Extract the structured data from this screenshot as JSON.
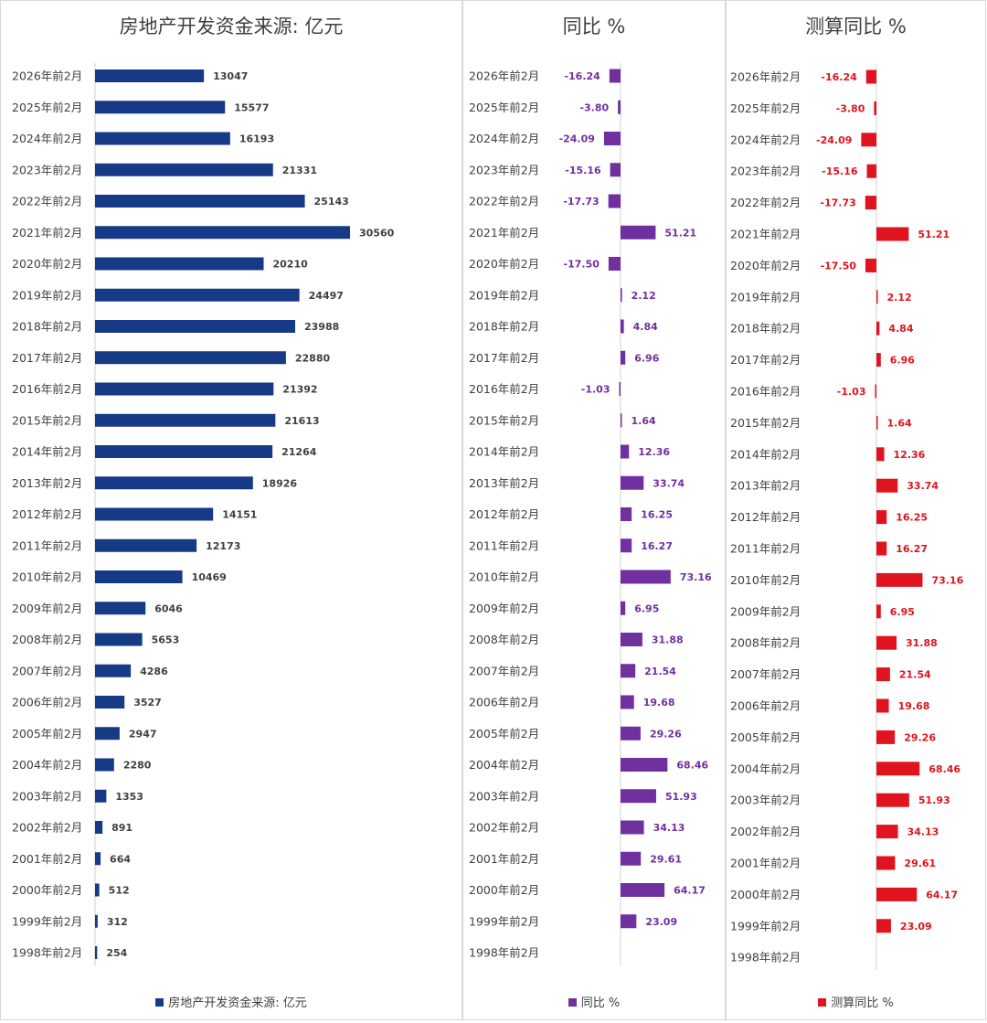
{
  "chart_data": [
    {
      "type": "bar",
      "orientation": "horizontal",
      "title": "房地产开发资金来源: 亿元",
      "categories": [
        "2026年前2月",
        "2025年前2月",
        "2024年前2月",
        "2023年前2月",
        "2022年前2月",
        "2021年前2月",
        "2020年前2月",
        "2019年前2月",
        "2018年前2月",
        "2017年前2月",
        "2016年前2月",
        "2015年前2月",
        "2014年前2月",
        "2013年前2月",
        "2012年前2月",
        "2011年前2月",
        "2010年前2月",
        "2009年前2月",
        "2008年前2月",
        "2007年前2月",
        "2006年前2月",
        "2005年前2月",
        "2004年前2月",
        "2003年前2月",
        "2002年前2月",
        "2001年前2月",
        "2000年前2月",
        "1999年前2月",
        "1998年前2月"
      ],
      "values": [
        13047,
        15577,
        16193,
        21331,
        25143,
        30560,
        20210,
        24497,
        23988,
        22880,
        21392,
        21613,
        21264,
        18926,
        14151,
        12173,
        10469,
        6046,
        5653,
        4286,
        3527,
        2947,
        2280,
        1353,
        891,
        664,
        512,
        312,
        254
      ],
      "labels": [
        "13047",
        "15577",
        "16193",
        "21331",
        "25143",
        "30560",
        "20210",
        "24497",
        "23988",
        "22880",
        "21392",
        "21613",
        "21264",
        "18926",
        "14151",
        "12173",
        "10469",
        "6046",
        "5653",
        "4286",
        "3527",
        "2947",
        "2280",
        "1353",
        "891",
        "664",
        "512",
        "312",
        "254"
      ],
      "series_name": "房地产开发资金来源: 亿元",
      "color": "#163a86",
      "label_color": "#404040",
      "xlim": [
        0,
        33000
      ],
      "grid": false,
      "legend": "bottom"
    },
    {
      "type": "bar",
      "orientation": "horizontal",
      "title": "同比 %",
      "categories": [
        "2026年前2月",
        "2025年前2月",
        "2024年前2月",
        "2023年前2月",
        "2022年前2月",
        "2021年前2月",
        "2020年前2月",
        "2019年前2月",
        "2018年前2月",
        "2017年前2月",
        "2016年前2月",
        "2015年前2月",
        "2014年前2月",
        "2013年前2月",
        "2012年前2月",
        "2011年前2月",
        "2010年前2月",
        "2009年前2月",
        "2008年前2月",
        "2007年前2月",
        "2006年前2月",
        "2005年前2月",
        "2004年前2月",
        "2003年前2月",
        "2002年前2月",
        "2001年前2月",
        "2000年前2月",
        "1999年前2月",
        "1998年前2月"
      ],
      "values": [
        -16.24,
        -3.8,
        -24.09,
        -15.16,
        -17.73,
        51.21,
        -17.5,
        2.12,
        4.84,
        6.96,
        -1.03,
        1.64,
        12.36,
        33.74,
        16.25,
        16.27,
        73.16,
        6.95,
        31.88,
        21.54,
        19.68,
        29.26,
        68.46,
        51.93,
        34.13,
        29.61,
        64.17,
        23.09,
        null
      ],
      "labels": [
        "-16.24",
        "-3.80",
        "-24.09",
        "-15.16",
        "-17.73",
        "51.21",
        "-17.50",
        "2.12",
        "4.84",
        "6.96",
        "-1.03",
        "1.64",
        "12.36",
        "33.74",
        "16.25",
        "16.27",
        "73.16",
        "6.95",
        "31.88",
        "21.54",
        "19.68",
        "29.26",
        "68.46",
        "51.93",
        "34.13",
        "29.61",
        "64.17",
        "23.09",
        ""
      ],
      "series_name": "同比 %",
      "color": "#7030a0",
      "label_color": "#7030a0",
      "xlim": [
        -30,
        100
      ],
      "grid": false,
      "legend": "bottom"
    },
    {
      "type": "bar",
      "orientation": "horizontal",
      "title": "测算同比 %",
      "categories": [
        "2026年前2月",
        "2025年前2月",
        "2024年前2月",
        "2023年前2月",
        "2022年前2月",
        "2021年前2月",
        "2020年前2月",
        "2019年前2月",
        "2018年前2月",
        "2017年前2月",
        "2016年前2月",
        "2015年前2月",
        "2014年前2月",
        "2013年前2月",
        "2012年前2月",
        "2011年前2月",
        "2010年前2月",
        "2009年前2月",
        "2008年前2月",
        "2007年前2月",
        "2006年前2月",
        "2005年前2月",
        "2004年前2月",
        "2003年前2月",
        "2002年前2月",
        "2001年前2月",
        "2000年前2月",
        "1999年前2月",
        "1998年前2月"
      ],
      "values": [
        -16.24,
        -3.8,
        -24.09,
        -15.16,
        -17.73,
        51.21,
        -17.5,
        2.12,
        4.84,
        6.96,
        -1.03,
        1.64,
        12.36,
        33.74,
        16.25,
        16.27,
        73.16,
        6.95,
        31.88,
        21.54,
        19.68,
        29.26,
        68.46,
        51.93,
        34.13,
        29.61,
        64.17,
        23.09,
        null
      ],
      "labels": [
        "-16.24",
        "-3.80",
        "-24.09",
        "-15.16",
        "-17.73",
        "51.21",
        "-17.50",
        "2.12",
        "4.84",
        "6.96",
        "-1.03",
        "1.64",
        "12.36",
        "33.74",
        "16.25",
        "16.27",
        "73.16",
        "6.95",
        "31.88",
        "21.54",
        "19.68",
        "29.26",
        "68.46",
        "51.93",
        "34.13",
        "29.61",
        "64.17",
        "23.09",
        ""
      ],
      "series_name": "测算同比 %",
      "color": "#e0141e",
      "label_color": "#e0141e",
      "xlim": [
        -30,
        100
      ],
      "grid": false,
      "legend": "bottom"
    }
  ]
}
